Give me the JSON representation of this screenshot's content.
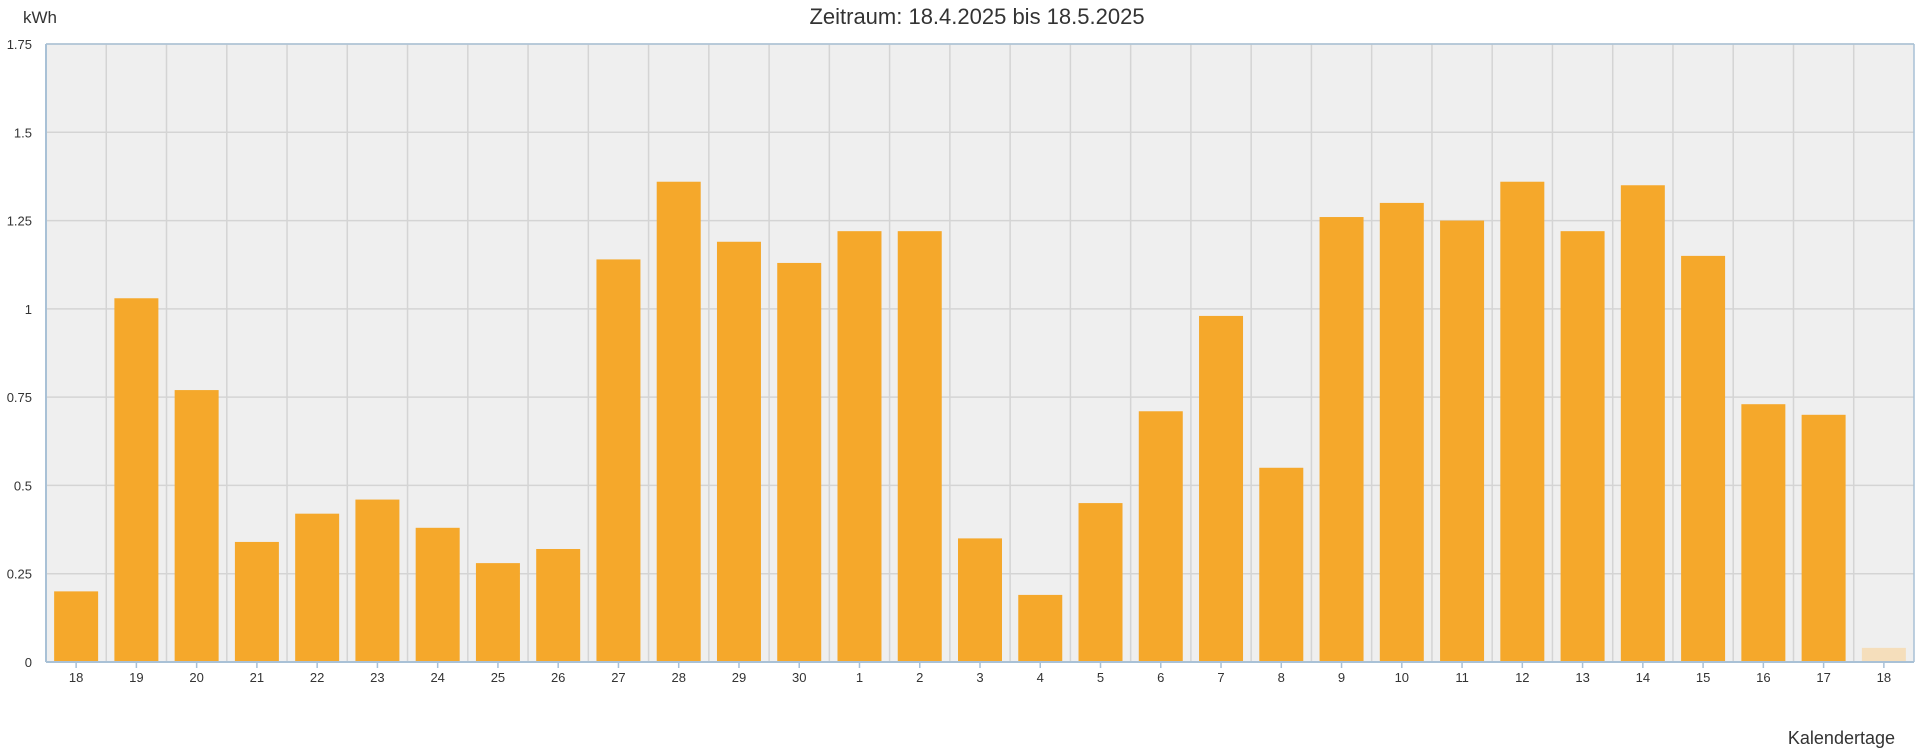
{
  "chart_data": {
    "type": "bar",
    "title": "Zeitraum: 18.4.2025 bis 18.5.2025",
    "ylabel": "kWh",
    "xlabel": "Kalendertage",
    "ylim": [
      0,
      1.75
    ],
    "yticks": [
      {
        "value": 0,
        "label": "0"
      },
      {
        "value": 0.25,
        "label": "0.25"
      },
      {
        "value": 0.5,
        "label": "0.5"
      },
      {
        "value": 0.75,
        "label": "0.75"
      },
      {
        "value": 1,
        "label": "1"
      },
      {
        "value": 1.25,
        "label": "1.25"
      },
      {
        "value": 1.5,
        "label": "1.5"
      },
      {
        "value": 1.75,
        "label": "1.75"
      }
    ],
    "grid": true,
    "categories": [
      "18",
      "19",
      "20",
      "21",
      "22",
      "23",
      "24",
      "25",
      "26",
      "27",
      "28",
      "29",
      "30",
      "1",
      "2",
      "3",
      "4",
      "5",
      "6",
      "7",
      "8",
      "9",
      "10",
      "11",
      "12",
      "13",
      "14",
      "15",
      "16",
      "17",
      "18"
    ],
    "values": [
      0.2,
      1.03,
      0.77,
      0.34,
      0.42,
      0.46,
      0.38,
      0.28,
      0.32,
      1.14,
      1.36,
      1.19,
      1.13,
      1.22,
      1.22,
      0.35,
      0.19,
      0.45,
      0.71,
      0.98,
      0.55,
      1.26,
      1.3,
      1.25,
      1.36,
      1.22,
      1.35,
      1.15,
      0.73,
      0.7,
      0.04
    ],
    "colors": {
      "bar": "#f5a82b",
      "bar_partial": "#f5debb",
      "plot_background": "#efefef",
      "grid": "#d4d4d4",
      "axis": "#a9c1d6"
    },
    "partial_last_bar": true
  }
}
